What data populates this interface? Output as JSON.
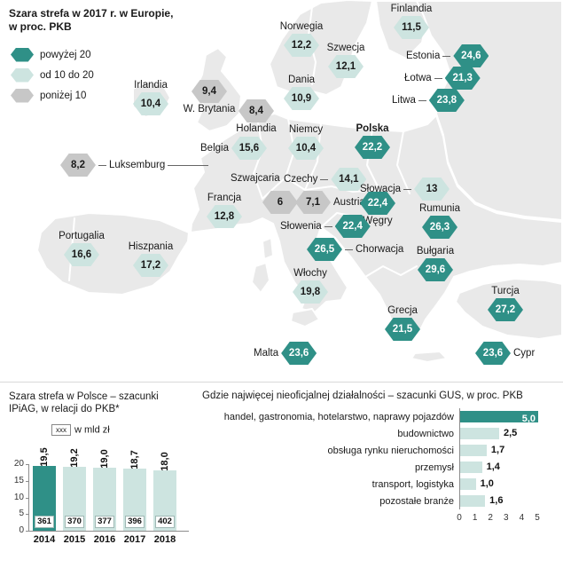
{
  "map": {
    "title_line1": "Szara strefa w 2017 r. w Europie,",
    "title_line2": "w proc. PKB",
    "legend": [
      {
        "label": "powyżej 20",
        "tier": "dark"
      },
      {
        "label": "od 10 do 20",
        "tier": "light"
      },
      {
        "label": "poniżej 10",
        "tier": "grey"
      }
    ],
    "countries": [
      {
        "name": "Finlandia",
        "value": "11,5",
        "tier": "light"
      },
      {
        "name": "Norwegia",
        "value": "12,2",
        "tier": "light"
      },
      {
        "name": "Szwecja",
        "value": "12,1",
        "tier": "light"
      },
      {
        "name": "Estonia",
        "value": "24,6",
        "tier": "dark"
      },
      {
        "name": "Łotwa",
        "value": "21,3",
        "tier": "dark"
      },
      {
        "name": "Litwa",
        "value": "23,8",
        "tier": "dark"
      },
      {
        "name": "Irlandia",
        "value": "10,4",
        "tier": "light"
      },
      {
        "name": "W. Brytania",
        "value": "9,4",
        "tier": "grey"
      },
      {
        "name": "Holandia",
        "value": "8,4",
        "tier": "grey"
      },
      {
        "name": "Dania",
        "value": "10,9",
        "tier": "light"
      },
      {
        "name": "Niemcy",
        "value": "10,4",
        "tier": "light"
      },
      {
        "name": "Polska",
        "value": "22,2",
        "tier": "dark"
      },
      {
        "name": "Belgia",
        "value": "15,6",
        "tier": "light"
      },
      {
        "name": "Luksemburg",
        "value": "8,2",
        "tier": "grey"
      },
      {
        "name": "Szwajcaria",
        "value": "6",
        "tier": "grey"
      },
      {
        "name": "Czechy",
        "value": "14,1",
        "tier": "light"
      },
      {
        "name": "Austria",
        "value": "7,1",
        "tier": "grey"
      },
      {
        "name": "Słowacja",
        "value": "13",
        "tier": "light"
      },
      {
        "name": "Węgry",
        "value": "22,4",
        "tier": "dark"
      },
      {
        "name": "Słowenia",
        "value": "22,4",
        "tier": "dark"
      },
      {
        "name": "Francja",
        "value": "12,8",
        "tier": "light"
      },
      {
        "name": "Rumunia",
        "value": "26,3",
        "tier": "dark"
      },
      {
        "name": "Chorwacja",
        "value": "26,5",
        "tier": "dark"
      },
      {
        "name": "Bułgaria",
        "value": "29,6",
        "tier": "dark"
      },
      {
        "name": "Portugalia",
        "value": "16,6",
        "tier": "light"
      },
      {
        "name": "Hiszpania",
        "value": "17,2",
        "tier": "light"
      },
      {
        "name": "Włochy",
        "value": "19,8",
        "tier": "light"
      },
      {
        "name": "Grecja",
        "value": "21,5",
        "tier": "dark"
      },
      {
        "name": "Malta",
        "value": "23,6",
        "tier": "dark"
      },
      {
        "name": "Turcja",
        "value": "27,2",
        "tier": "dark"
      },
      {
        "name": "Cypr",
        "value": "23,6",
        "tier": "dark"
      }
    ]
  },
  "chart_data": [
    {
      "type": "bar",
      "title_line1": "Szara strefa w Polsce – szacunki",
      "title_line2": "IPiAG, w relacji do PKB*",
      "legend_box_label": "xxx",
      "legend_text": "w mld zł",
      "categories": [
        "2014",
        "2015",
        "2016",
        "2017",
        "2018"
      ],
      "values": [
        19.5,
        19.2,
        19.0,
        18.7,
        18.0
      ],
      "value_labels": [
        "19,5",
        "19,2",
        "19,0",
        "18,7",
        "18,0"
      ],
      "bar_footer_values": [
        "361",
        "370",
        "377",
        "396",
        "402"
      ],
      "ylim": [
        0,
        20
      ],
      "yticks": [
        "20",
        "15",
        "10",
        "5",
        "0"
      ]
    },
    {
      "type": "bar-horizontal",
      "title": "Gdzie najwięcej nieoficjalnej działalności – szacunki GUS, w proc. PKB",
      "categories": [
        "handel, gastronomia, hotelarstwo, naprawy pojazdów",
        "budownictwo",
        "obsługa rynku nieruchomości",
        "przemysł",
        "transport, logistyka",
        "pozostałe branże"
      ],
      "values": [
        5.0,
        2.5,
        1.7,
        1.4,
        1.0,
        1.6
      ],
      "value_labels": [
        "5,0",
        "2,5",
        "1,7",
        "1,4",
        "1,0",
        "1,6"
      ],
      "xlim": [
        0,
        5
      ],
      "xticks": [
        "0",
        "1",
        "2",
        "3",
        "4",
        "5"
      ]
    }
  ],
  "colors": {
    "dark": "#2f9087",
    "light": "#cde4e0",
    "grey": "#c7c7c7",
    "land": "#e9e9e9"
  }
}
